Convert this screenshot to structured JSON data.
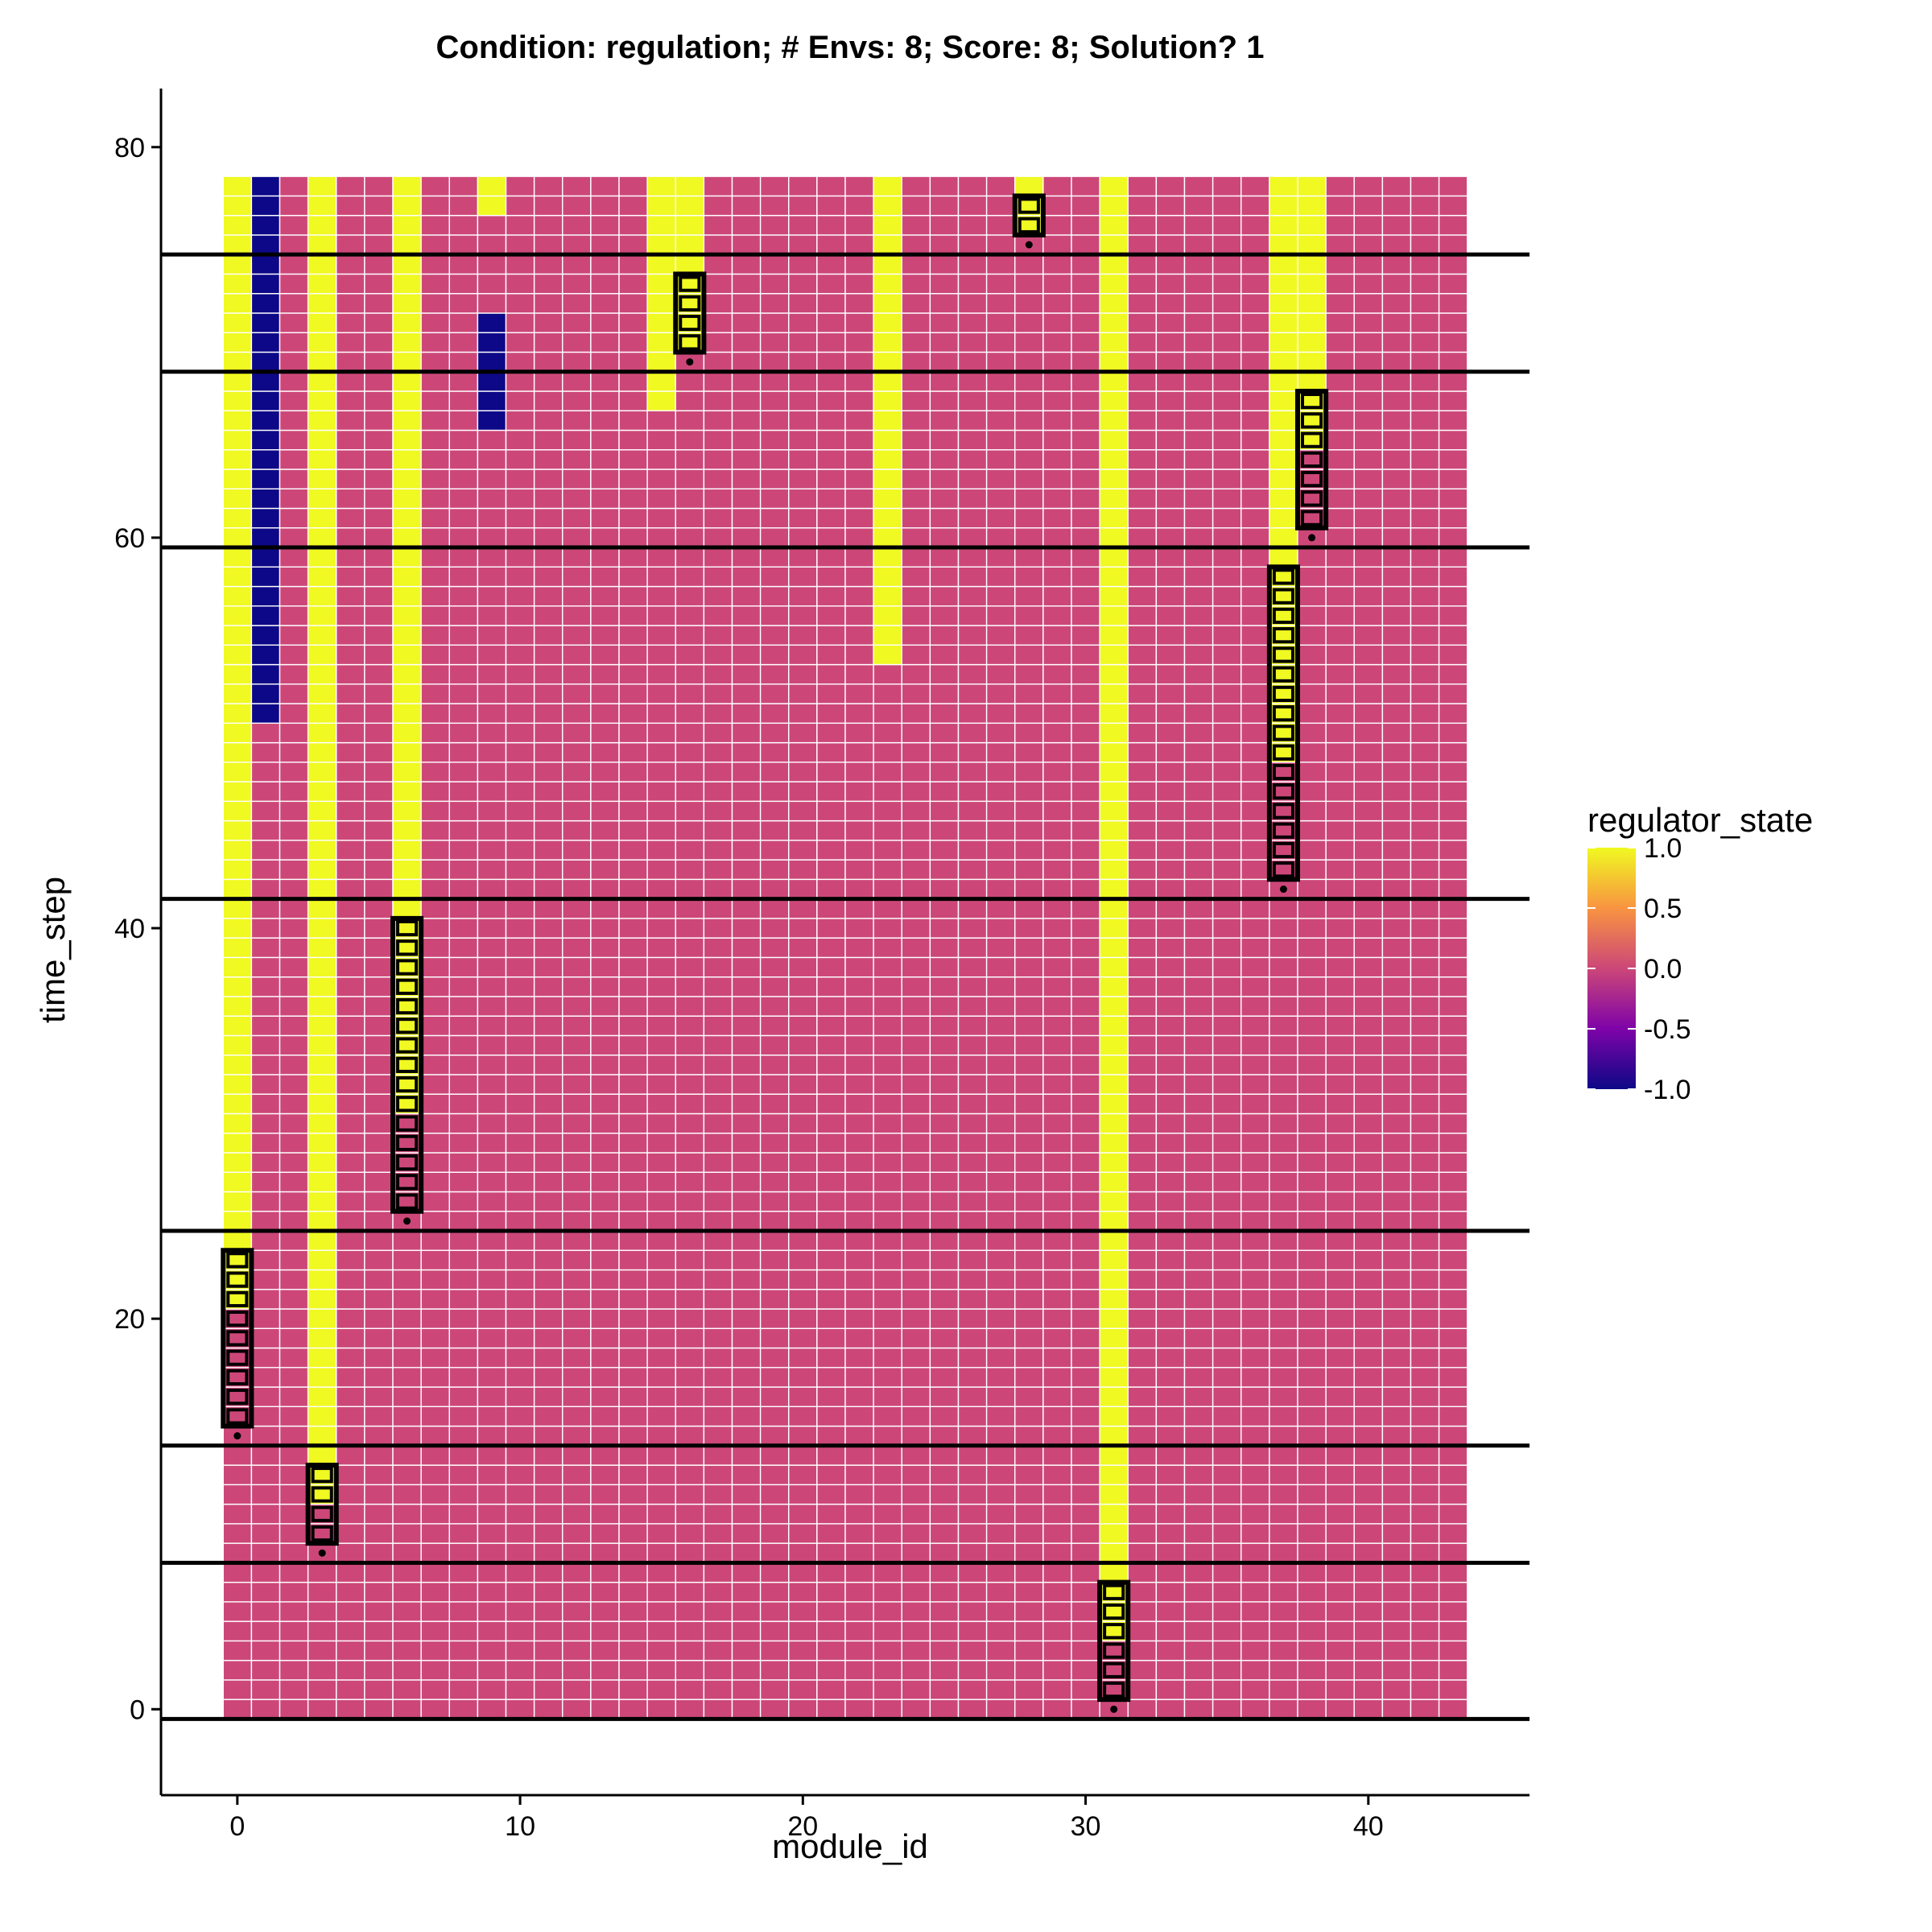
{
  "chart_data": {
    "type": "heatmap",
    "title": "Condition: regulation; # Envs: 8; Score: 8; Solution? 1",
    "xlabel": "module_id",
    "ylabel": "time_step",
    "xlim": [
      -2.7,
      45.7
    ],
    "ylim": [
      -4.4,
      83
    ],
    "x_ticks": [
      0,
      10,
      20,
      30,
      40
    ],
    "y_ticks": [
      0,
      20,
      40,
      60,
      80
    ],
    "grid": false,
    "legend": {
      "title": "regulator_state",
      "placement": "right",
      "ticks": [
        1.0,
        0.5,
        0.0,
        -0.5,
        -1.0
      ],
      "tick_labels": [
        "1.0",
        "0.5",
        "0.0",
        "-0.5",
        "-1.0"
      ],
      "colors": {
        "1.0": "#F0F921",
        "0.5": "#F89441",
        "0.0": "#CC4778",
        "-0.5": "#7E03A8",
        "-1.0": "#0D0887"
      }
    },
    "grid_extent": {
      "module_id": [
        0,
        43
      ],
      "time_step": [
        0,
        78
      ]
    },
    "default_state": 0,
    "state_runs": [
      {
        "module_id": 0,
        "time_from": 24,
        "time_to": 78,
        "state": 1
      },
      {
        "module_id": 0,
        "time_from": 21,
        "time_to": 23,
        "state": 1
      },
      {
        "module_id": 1,
        "time_from": 51,
        "time_to": 78,
        "state": -1
      },
      {
        "module_id": 3,
        "time_from": 11,
        "time_to": 78,
        "state": 1
      },
      {
        "module_id": 6,
        "time_from": 31,
        "time_to": 78,
        "state": 1
      },
      {
        "module_id": 9,
        "time_from": 77,
        "time_to": 78,
        "state": 1
      },
      {
        "module_id": 9,
        "time_from": 66,
        "time_to": 71,
        "state": -1
      },
      {
        "module_id": 15,
        "time_from": 67,
        "time_to": 78,
        "state": 1
      },
      {
        "module_id": 16,
        "time_from": 70,
        "time_to": 78,
        "state": 1
      },
      {
        "module_id": 23,
        "time_from": 54,
        "time_to": 78,
        "state": 1
      },
      {
        "module_id": 28,
        "time_from": 76,
        "time_to": 78,
        "state": 1
      },
      {
        "module_id": 31,
        "time_from": 4,
        "time_to": 78,
        "state": 1
      },
      {
        "module_id": 37,
        "time_from": 49,
        "time_to": 78,
        "state": 1
      },
      {
        "module_id": 38,
        "time_from": 65,
        "time_to": 78,
        "state": 1
      }
    ],
    "highlight_boxes": [
      {
        "module_id": 0,
        "time_from": 15,
        "time_to": 23,
        "marker_time": 14
      },
      {
        "module_id": 3,
        "time_from": 9,
        "time_to": 12,
        "marker_time": 8
      },
      {
        "module_id": 6,
        "time_from": 26,
        "time_to": 40,
        "marker_time": 25
      },
      {
        "module_id": 16,
        "time_from": 70,
        "time_to": 73,
        "marker_time": 69
      },
      {
        "module_id": 28,
        "time_from": 76,
        "time_to": 77,
        "marker_time": 75
      },
      {
        "module_id": 31,
        "time_from": 1,
        "time_to": 6,
        "marker_time": 0
      },
      {
        "module_id": 37,
        "time_from": 43,
        "time_to": 58,
        "marker_time": 42
      },
      {
        "module_id": 38,
        "time_from": 61,
        "time_to": 67,
        "marker_time": 60
      }
    ],
    "environment_change_lines": [
      -0.5,
      7.5,
      13.5,
      24.5,
      41.5,
      59.5,
      68.5,
      74.5
    ]
  }
}
